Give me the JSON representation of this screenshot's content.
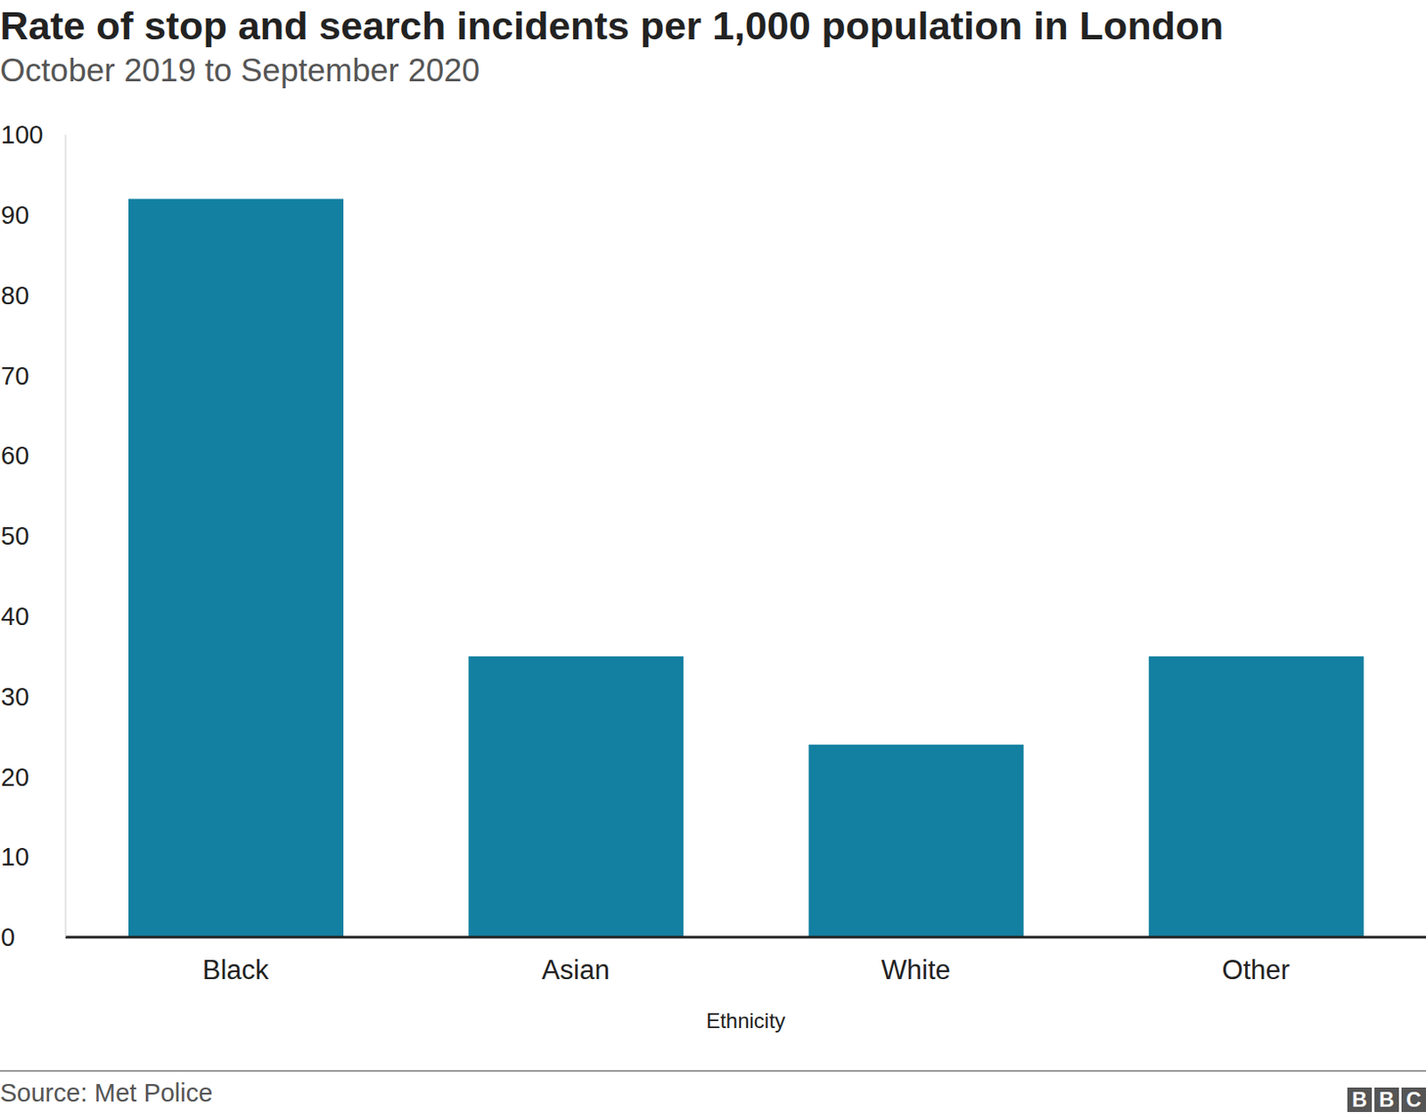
{
  "chart_data": {
    "type": "bar",
    "title": "Rate of stop and search incidents per 1,000 population in London",
    "subtitle": "October 2019 to September 2020",
    "x_label": "Ethnicity",
    "categories": [
      "Black",
      "Asian",
      "White",
      "Other"
    ],
    "values": [
      92,
      35,
      24,
      35
    ],
    "color": "#1380a1",
    "ylim": [
      0,
      100
    ],
    "yticks": [
      0,
      10,
      20,
      30,
      40,
      50,
      60,
      70,
      80,
      90,
      100
    ],
    "grid": false,
    "source": "Source: Met Police",
    "logo": "BBC"
  }
}
